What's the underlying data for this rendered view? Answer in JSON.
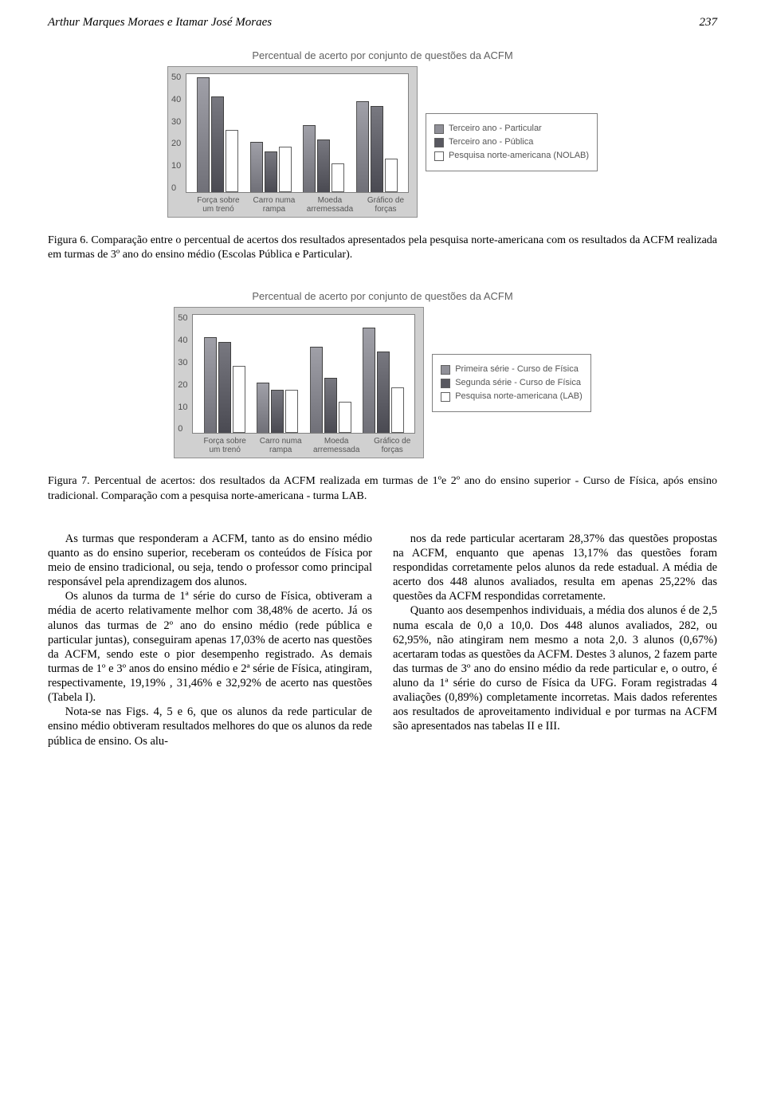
{
  "header": {
    "authors": "Arthur Marques Moraes e Itamar José Moraes",
    "page_number": "237"
  },
  "figure6": {
    "chart_title": "Percentual de acerto por conjunto de questões da ACFM",
    "type": "bar",
    "y": {
      "min": 0,
      "max": 50,
      "ticks": [
        "0",
        "10",
        "20",
        "30",
        "40",
        "50"
      ]
    },
    "background_color": "#d0d0d0",
    "plot_background": "#ffffff",
    "categories": [
      "Força sobre\num trenó",
      "Carro numa\nrampa",
      "Moeda\narremessada",
      "Gráfico de\nforças"
    ],
    "series": [
      {
        "label": "Terceiro ano - Particular",
        "color": "#909098",
        "values": [
          48,
          21,
          28,
          38
        ]
      },
      {
        "label": "Terceiro ano - Pública",
        "color": "#585860",
        "values": [
          40,
          17,
          22,
          36
        ]
      },
      {
        "label": "Pesquisa norte-americana (NOLAB)",
        "color": "#ffffff",
        "values": [
          26,
          19,
          12,
          14
        ]
      }
    ],
    "caption": "Figura 6. Comparação entre o percentual de acertos dos resultados apresentados pela pesquisa norte-americana com os resultados da ACFM realizada em turmas de 3º ano do ensino médio (Escolas Pública e Particular)."
  },
  "figure7": {
    "chart_title": "Percentual de acerto por conjunto de questões da ACFM",
    "type": "bar",
    "y": {
      "min": 0,
      "max": 50,
      "ticks": [
        "0",
        "10",
        "20",
        "30",
        "40",
        "50"
      ]
    },
    "background_color": "#d0d0d0",
    "plot_background": "#ffffff",
    "categories": [
      "Força sobre\num trenó",
      "Carro numa\nrampa",
      "Moeda\narremessada",
      "Gráfico de\nforças"
    ],
    "series": [
      {
        "label": "Primeira série - Curso de Física",
        "color": "#909098",
        "values": [
          40,
          21,
          36,
          44
        ]
      },
      {
        "label": "Segunda série - Curso de Física",
        "color": "#585860",
        "values": [
          38,
          18,
          23,
          34
        ]
      },
      {
        "label": "Pesquisa norte-americana (LAB)",
        "color": "#ffffff",
        "values": [
          28,
          18,
          13,
          19
        ]
      }
    ],
    "caption": "Figura 7. Percentual de acertos: dos resultados da ACFM realizada em turmas de 1ºe 2º ano do ensino superior - Curso de Física, após ensino tradicional. Comparação com a pesquisa norte-americana - turma LAB."
  },
  "body": {
    "left": [
      "As turmas que responderam a ACFM, tanto as do ensino médio quanto as do ensino superior, receberam os conteúdos de Física por meio de ensino tradicional, ou seja, tendo o professor como principal responsável pela aprendizagem dos alunos.",
      "Os alunos da turma de 1ª série do curso de Física, obtiveram a média de acerto relativamente melhor com 38,48% de acerto. Já os alunos das turmas de 2º ano do ensino médio (rede pública e particular juntas), conseguiram apenas 17,03% de acerto nas questões da ACFM, sendo este o pior desempenho registrado. As demais turmas de 1º e 3º anos do ensino médio e 2ª série de Física, atingiram, respectivamente, 19,19% , 31,46% e 32,92% de acerto nas questões (Tabela I).",
      "Nota-se nas Figs. 4, 5 e 6, que os alunos da rede particular de ensino médio obtiveram resultados melhores do que os alunos da rede pública de ensino. Os alu-"
    ],
    "right": [
      "nos da rede particular acertaram 28,37% das questões propostas na ACFM, enquanto que apenas 13,17% das questões foram respondidas corretamente pelos alunos da rede estadual. A média de acerto dos 448 alunos avaliados, resulta em apenas 25,22% das questões da ACFM respondidas corretamente.",
      "Quanto aos desempenhos individuais, a média dos alunos é de 2,5 numa escala de 0,0 a 10,0. Dos 448 alunos avaliados, 282, ou 62,95%, não atingiram nem mesmo a nota 2,0. 3 alunos (0,67%) acertaram todas as questões da ACFM. Destes 3 alunos, 2 fazem parte das turmas de 3º ano do ensino médio da rede particular e, o outro, é aluno da 1ª série do curso de Física da UFG. Foram registradas 4 avaliações (0,89%) completamente incorretas. Mais dados referentes aos resultados de aproveitamento individual e por turmas na ACFM são apresentados nas tabelas II e III."
    ]
  }
}
